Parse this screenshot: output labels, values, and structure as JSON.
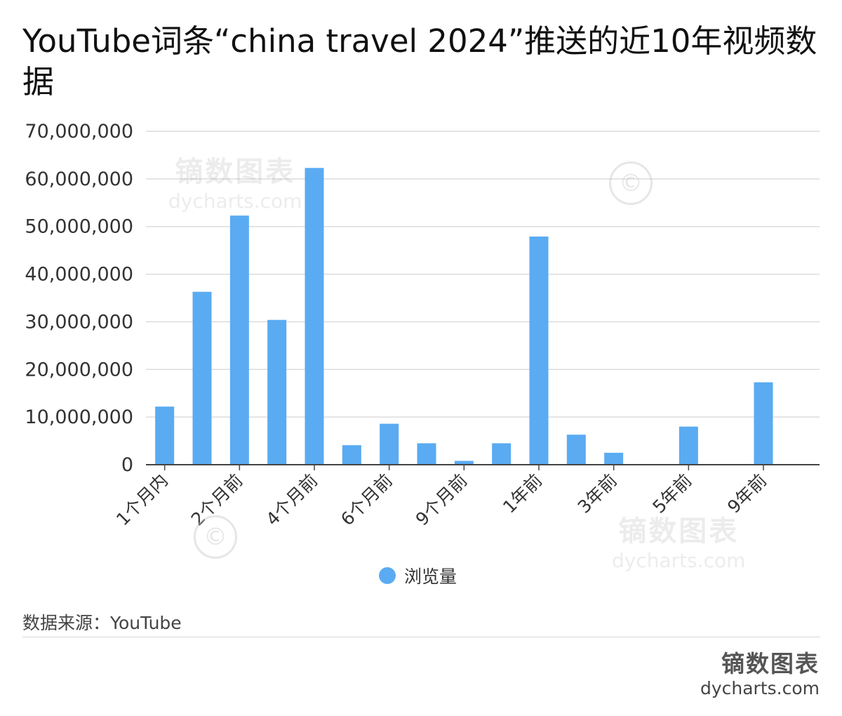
{
  "title": "YouTube词条“china travel 2024”推送的近10年视频数据",
  "chart_data": {
    "type": "bar",
    "categories": [
      "1个月内",
      "",
      "2个月前",
      "",
      "4个月前",
      "",
      "6个月前",
      "",
      "9个月前",
      "",
      "1年前",
      "",
      "3年前",
      "",
      "5年前",
      "",
      "9年前",
      ""
    ],
    "series": [
      {
        "name": "浏览量",
        "values": [
          12200000,
          36300000,
          52300000,
          30400000,
          62300000,
          4100000,
          8600000,
          4500000,
          800000,
          4500000,
          47900000,
          6300000,
          2500000,
          0,
          8000000,
          0,
          17300000,
          0
        ]
      }
    ],
    "xlabel": "",
    "ylabel": "",
    "ylim": [
      0,
      70000000
    ],
    "yticks": [
      0,
      10000000,
      20000000,
      30000000,
      40000000,
      50000000,
      60000000,
      70000000
    ],
    "ytick_labels": [
      "0",
      "10,000,000",
      "20,000,000",
      "30,000,000",
      "40,000,000",
      "50,000,000",
      "60,000,000",
      "70,000,000"
    ],
    "grid": true,
    "legend_position": "bottom-center",
    "bar_color": "#5aabf2"
  },
  "legend": {
    "label": "浏览量"
  },
  "source": "数据来源：YouTube",
  "brand": {
    "name_cn": "镝数图表",
    "name_en": "dycharts.com"
  },
  "watermark": {
    "name_cn": "镝数图表",
    "name_en": "dycharts.com"
  }
}
